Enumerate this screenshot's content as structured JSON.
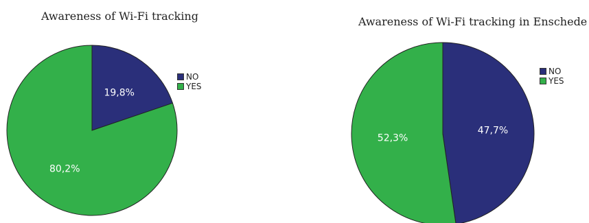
{
  "chart_data": [
    {
      "type": "pie",
      "title": "Awareness of Wi-Fi tracking",
      "categories": [
        "NO",
        "YES"
      ],
      "values": [
        19.8,
        80.2
      ],
      "labels": [
        "19,8%",
        "80,2%"
      ],
      "colors": [
        "#2a2f7a",
        "#33b04a"
      ],
      "legend_position": "right"
    },
    {
      "type": "pie",
      "title": "Awareness of Wi-Fi tracking in Enschede",
      "categories": [
        "NO",
        "YES"
      ],
      "values": [
        47.7,
        52.3
      ],
      "labels": [
        "47,7%",
        "52,3%"
      ],
      "colors": [
        "#2a2f7a",
        "#33b04a"
      ],
      "legend_position": "right"
    }
  ]
}
